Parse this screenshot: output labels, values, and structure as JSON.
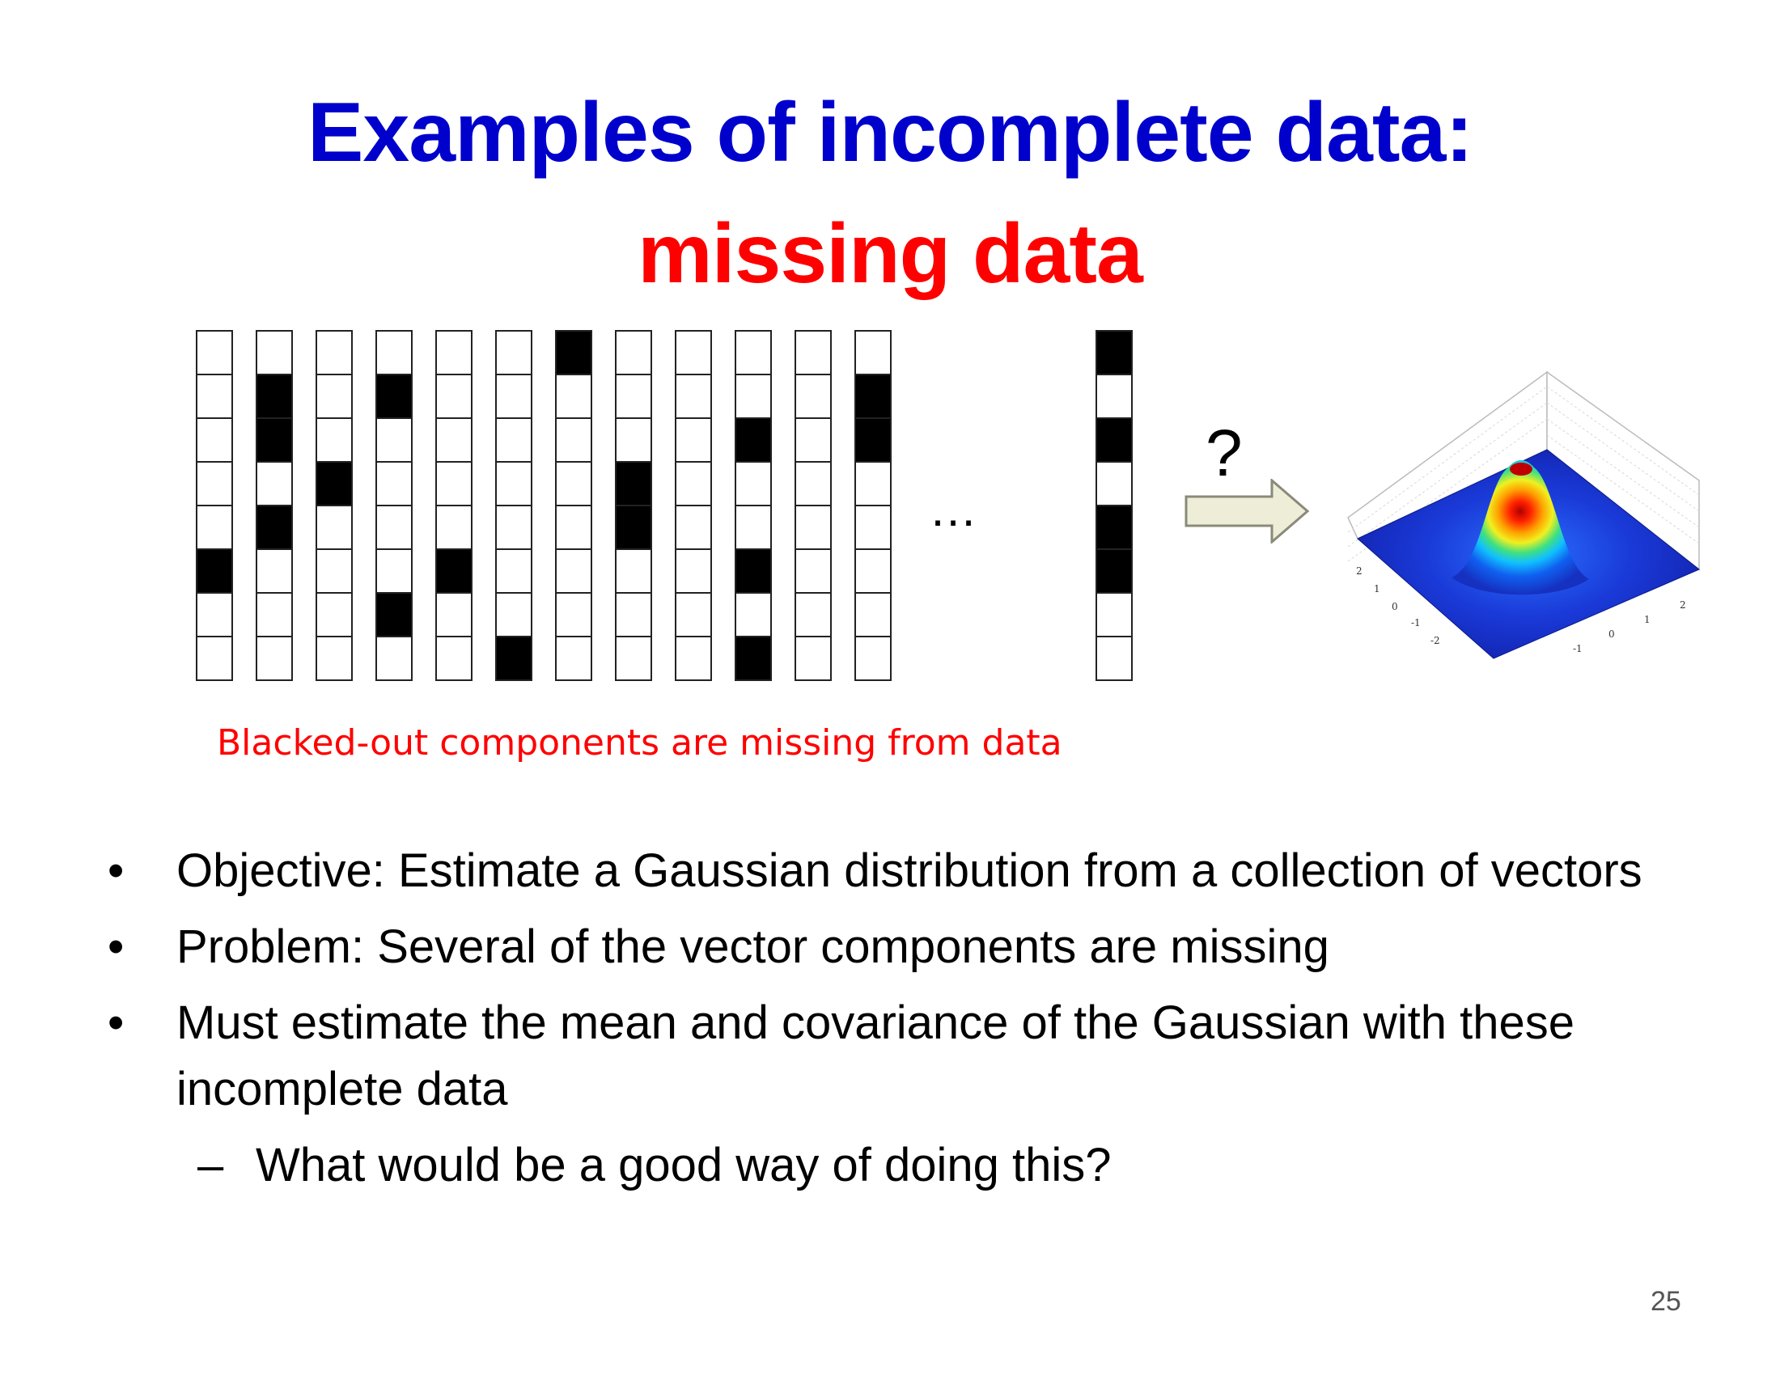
{
  "slide": {
    "title_line1": "Examples of incomplete data:",
    "title_line2": "missing data",
    "figure": {
      "vectors": [
        [
          0,
          0,
          0,
          0,
          0,
          1,
          0,
          0
        ],
        [
          0,
          1,
          1,
          0,
          1,
          0,
          0,
          0
        ],
        [
          0,
          0,
          0,
          1,
          0,
          0,
          0,
          0
        ],
        [
          0,
          1,
          0,
          0,
          0,
          0,
          1,
          0
        ],
        [
          0,
          0,
          0,
          0,
          0,
          1,
          0,
          0
        ],
        [
          0,
          0,
          0,
          0,
          0,
          0,
          0,
          1
        ],
        [
          1,
          0,
          0,
          0,
          0,
          0,
          0,
          0
        ],
        [
          0,
          0,
          0,
          1,
          1,
          0,
          0,
          0
        ],
        [
          0,
          0,
          0,
          0,
          0,
          0,
          0,
          0
        ],
        [
          0,
          0,
          1,
          0,
          0,
          1,
          0,
          1
        ],
        [
          0,
          0,
          0,
          0,
          0,
          0,
          0,
          0
        ],
        [
          0,
          1,
          1,
          0,
          0,
          0,
          0,
          0
        ],
        [
          1,
          0,
          1,
          0,
          1,
          1,
          0,
          0
        ]
      ],
      "ellipsis": "…",
      "question_mark": "?",
      "surface_ticks_left": [
        "2",
        "1",
        "0",
        "-1",
        "-2"
      ],
      "surface_ticks_right": [
        "-1",
        "0",
        "1",
        "2"
      ],
      "colors": {
        "missing": "#000000",
        "present": "#ffffff",
        "arrow_fill": "#eeeed8"
      }
    },
    "caption": "Blacked-out components are missing from data",
    "bullets": [
      "Objective:  Estimate a Gaussian distribution from a collection of vectors",
      "Problem:  Several of the vector components are missing",
      "Must estimate the mean and covariance of the Gaussian with these incomplete data"
    ],
    "sub_bullets": [
      "What would be a good way of doing this?"
    ],
    "bullet_marker": "•",
    "sub_marker": "–",
    "page_number": "25"
  }
}
